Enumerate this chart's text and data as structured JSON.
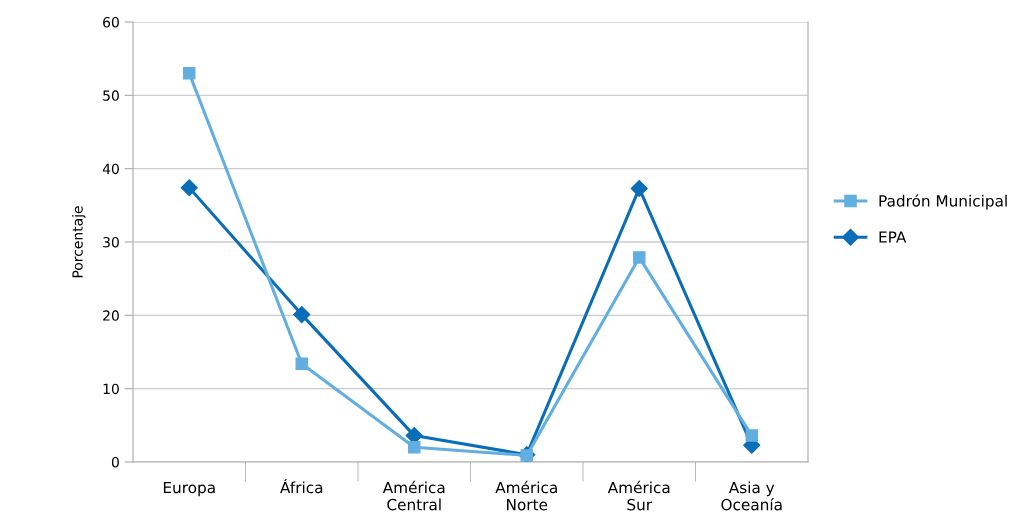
{
  "chart_data": {
    "type": "line",
    "ylabel": "Porcentaje",
    "categories": [
      "Europa",
      "África",
      "América\nCentral",
      "América\nNorte",
      "América\nSur",
      "Asia y\nOceanía"
    ],
    "series": [
      {
        "name": "Padrón Municipal",
        "color": "#62aee0",
        "marker": "square",
        "values": [
          53.0,
          13.4,
          2.0,
          0.9,
          27.9,
          3.6
        ]
      },
      {
        "name": "EPA",
        "color": "#0a6db8",
        "marker": "diamond",
        "values": [
          37.4,
          20.1,
          3.6,
          1.0,
          37.3,
          2.3
        ]
      }
    ],
    "ylim": [
      0,
      60
    ],
    "yticks": [
      0,
      10,
      20,
      30,
      40,
      50,
      60
    ],
    "grid": "y",
    "legend": "right",
    "line_style": "solid"
  }
}
